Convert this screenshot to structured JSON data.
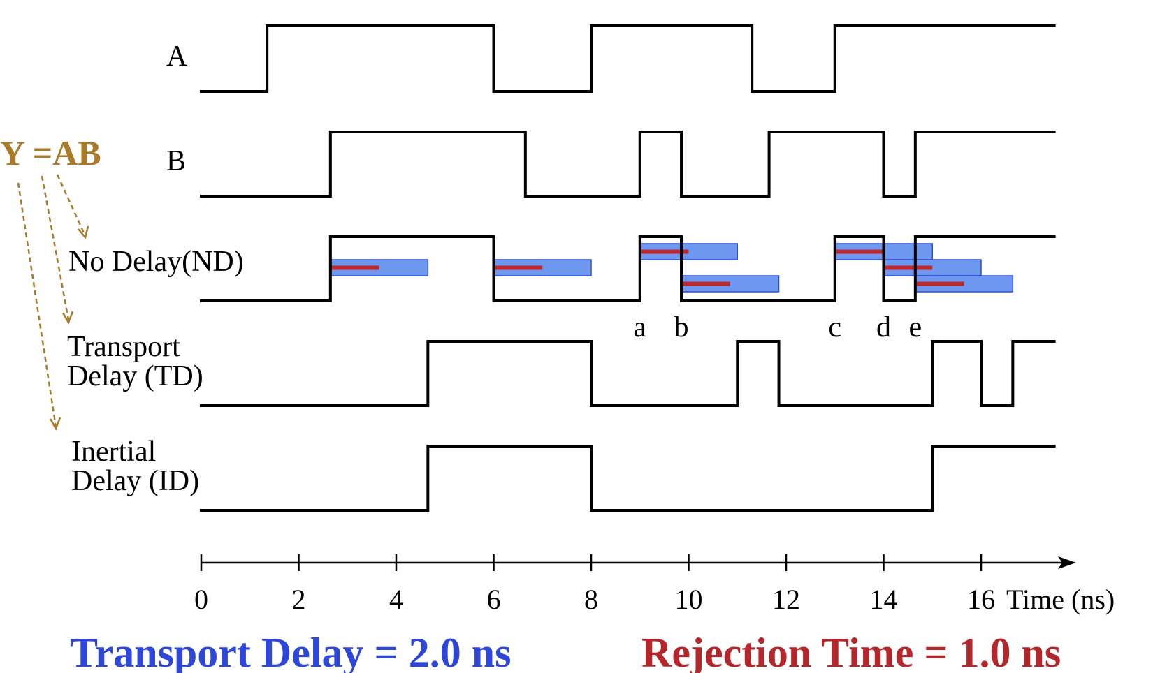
{
  "equation": "Y =AB",
  "signals": [
    {
      "id": "A",
      "label_lines": [
        "A"
      ],
      "initial": 0,
      "transitions": [
        1.35,
        6,
        8,
        11.3,
        13
      ],
      "end": 17.5
    },
    {
      "id": "B",
      "label_lines": [
        "B"
      ],
      "initial": 0,
      "transitions": [
        2.65,
        6.65,
        9,
        9.85,
        11.65,
        14,
        14.65
      ],
      "end": 17.5
    },
    {
      "id": "ND",
      "label_lines": [
        "No Delay(ND)"
      ],
      "initial": 0,
      "transitions": [
        2.65,
        6,
        9,
        9.85,
        13,
        14,
        14.65
      ],
      "end": 17.5
    },
    {
      "id": "TD",
      "label_lines": [
        "Transport",
        "Delay (TD)"
      ],
      "initial": 0,
      "transitions": [
        4.65,
        8,
        11,
        11.85,
        15,
        16,
        16.65
      ],
      "end": 17.5
    },
    {
      "id": "ID",
      "label_lines": [
        "Inertial",
        "Delay (ID)"
      ],
      "initial": 0,
      "transitions": [
        4.65,
        8,
        15
      ],
      "end": 17.5
    }
  ],
  "delay_windows": [
    {
      "start": 2.65,
      "end": 4.65,
      "level": "mid"
    },
    {
      "start": 6.0,
      "end": 8.0,
      "level": "mid"
    },
    {
      "start": 9.0,
      "end": 11.0,
      "level": "high"
    },
    {
      "start": 9.85,
      "end": 11.85,
      "level": "low"
    },
    {
      "start": 13.0,
      "end": 15.0,
      "level": "high"
    },
    {
      "start": 14.0,
      "end": 16.0,
      "level": "mid"
    },
    {
      "start": 14.65,
      "end": 16.65,
      "level": "low"
    }
  ],
  "rejection_time_ns": 1.0,
  "event_labels": [
    {
      "text": "a",
      "t": 9.0
    },
    {
      "text": "b",
      "t": 9.85
    },
    {
      "text": "c",
      "t": 13.0
    },
    {
      "text": "d",
      "t": 14.0
    },
    {
      "text": "e",
      "t": 14.65
    }
  ],
  "axis": {
    "ticks": [
      0,
      2,
      4,
      6,
      8,
      10,
      12,
      14,
      16
    ],
    "label": "Time (ns)",
    "min": 0,
    "max": 17.5
  },
  "footer": {
    "transport": "Transport Delay = 2.0 ns",
    "rejection": "Rejection Time = 1.0 ns"
  },
  "colors": {
    "equation": "#a87a2a",
    "transport_text": "#2f47d8",
    "rejection_text": "#b3262b",
    "window_fill": "#6e98f0",
    "rejection_bar": "#c0272d"
  }
}
